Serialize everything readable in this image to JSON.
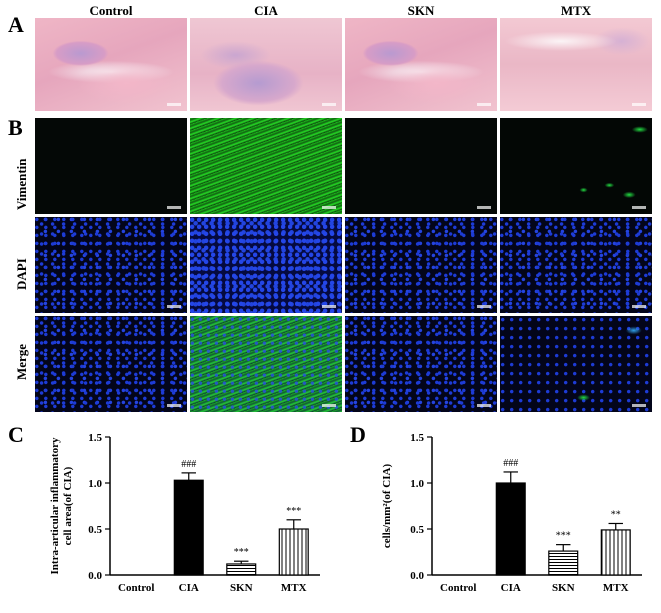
{
  "panels": {
    "A": "A",
    "B": "B",
    "C": "C",
    "D": "D"
  },
  "columns": [
    "Control",
    "CIA",
    "SKN",
    "MTX"
  ],
  "rows": [
    "Vimentin",
    "DAPI",
    "Merge"
  ],
  "chart_data": [
    {
      "type": "bar",
      "panel": "C",
      "categories": [
        "Control",
        "CIA",
        "SKN",
        "MTX"
      ],
      "values": [
        0.0,
        1.03,
        0.12,
        0.5
      ],
      "errors": [
        0.0,
        0.08,
        0.03,
        0.1
      ],
      "annotations": [
        "",
        "###",
        "***",
        "***"
      ],
      "fills": [
        "solid",
        "solid",
        "horizontal-lines",
        "vertical-lines"
      ],
      "ylabel_line1": "Intra-articular inflammatory",
      "ylabel_line2": "cell area(of CIA)",
      "ylim": [
        0,
        1.5
      ],
      "yticks": [
        "0.0",
        "0.5",
        "1.0",
        "1.5"
      ]
    },
    {
      "type": "bar",
      "panel": "D",
      "categories": [
        "Control",
        "CIA",
        "SKN",
        "MTX"
      ],
      "values": [
        0.0,
        1.0,
        0.26,
        0.49
      ],
      "errors": [
        0.0,
        0.12,
        0.07,
        0.07
      ],
      "annotations": [
        "",
        "###",
        "***",
        "**"
      ],
      "fills": [
        "solid",
        "solid",
        "horizontal-lines",
        "vertical-lines"
      ],
      "ylabel_line1": "cells/mm²(of CIA)",
      "ylabel_line2": "",
      "ylim": [
        0,
        1.5
      ],
      "yticks": [
        "0.0",
        "0.5",
        "1.0",
        "1.5"
      ]
    }
  ]
}
